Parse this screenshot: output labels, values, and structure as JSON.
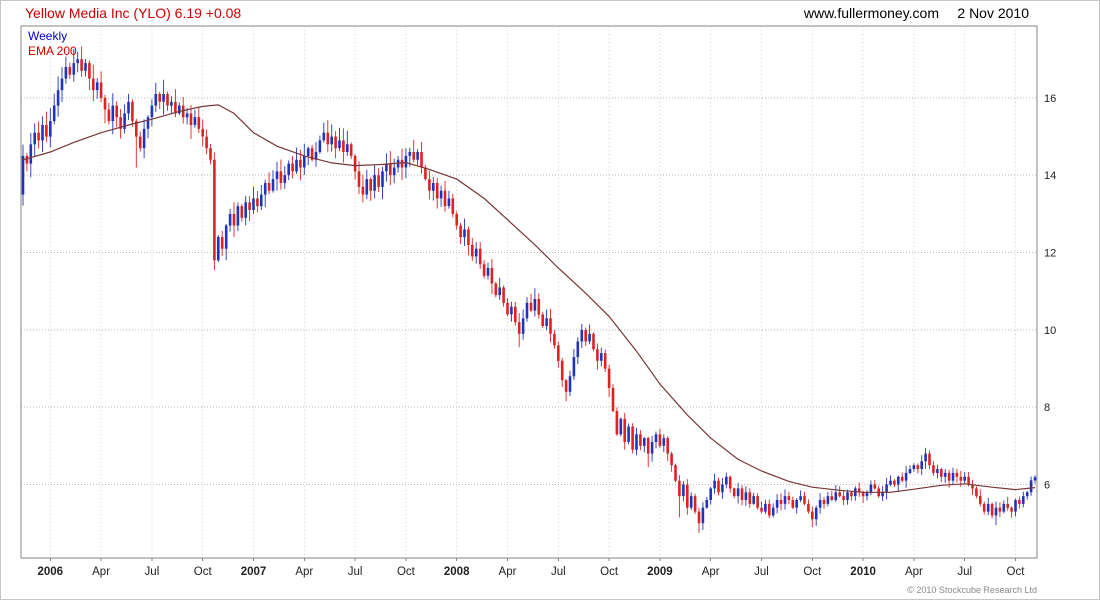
{
  "header": {
    "title": "Yellow Media Inc (YLO) 6.19 +0.08",
    "instrument": "Yellow Media Inc",
    "ticker": "YLO",
    "last_price": "6.19",
    "change": "+0.08",
    "website": "www.fullermoney.com",
    "date": "2 Nov 2010"
  },
  "legend": {
    "timeframe": "Weekly",
    "indicator": "EMA 200"
  },
  "footer": {
    "copyright": "© 2010 Stockcube Research Ltd"
  },
  "colors": {
    "up": "#2233bb",
    "down": "#dd2222",
    "ema": "#7a3535",
    "grid_h": "#b9b9b9",
    "grid_v": "#d2d2d2",
    "border": "#858585",
    "axis_text": "#222222",
    "title_red": "#cc0000",
    "weekly_blue": "#0000cc"
  },
  "chart_data": {
    "type": "candlestick",
    "title": "Yellow Media Inc (YLO) 6.19 +0.08",
    "series_name": "Yellow Media Inc (YLO) weekly price",
    "timeframe": "Weekly",
    "indicator": "EMA 200",
    "legend_position": "top-left",
    "grid": true,
    "weeks": 260,
    "first_open": 13.5,
    "y_axis": {
      "min": 4.1,
      "max": 17.86,
      "ticks": [
        6,
        8,
        10,
        12,
        14,
        16
      ]
    },
    "x_ticks": [
      {
        "label": "2006",
        "week": 7,
        "year": true
      },
      {
        "label": "Apr",
        "week": 20
      },
      {
        "label": "Jul",
        "week": 33
      },
      {
        "label": "Oct",
        "week": 46
      },
      {
        "label": "2007",
        "week": 59,
        "year": true
      },
      {
        "label": "Apr",
        "week": 72
      },
      {
        "label": "Jul",
        "week": 85
      },
      {
        "label": "Oct",
        "week": 98
      },
      {
        "label": "2008",
        "week": 111,
        "year": true
      },
      {
        "label": "Apr",
        "week": 124
      },
      {
        "label": "Jul",
        "week": 137
      },
      {
        "label": "Oct",
        "week": 150
      },
      {
        "label": "2009",
        "week": 163,
        "year": true
      },
      {
        "label": "Apr",
        "week": 176
      },
      {
        "label": "Jul",
        "week": 189
      },
      {
        "label": "Oct",
        "week": 202
      },
      {
        "label": "2010",
        "week": 215,
        "year": true
      },
      {
        "label": "Apr",
        "week": 228
      },
      {
        "label": "Jul",
        "week": 241
      },
      {
        "label": "Oct",
        "week": 254
      }
    ],
    "closes": [
      14.5,
      14.3,
      14.8,
      15.1,
      14.9,
      15.3,
      15.0,
      15.4,
      15.8,
      16.2,
      16.5,
      16.8,
      16.6,
      16.9,
      17.0,
      16.7,
      16.9,
      16.5,
      16.2,
      16.4,
      16.0,
      15.7,
      15.4,
      15.8,
      15.5,
      15.2,
      15.6,
      15.9,
      15.4,
      15.0,
      14.7,
      15.2,
      15.5,
      15.8,
      16.1,
      15.9,
      16.1,
      15.8,
      15.9,
      15.6,
      15.8,
      15.5,
      15.6,
      15.3,
      15.5,
      15.2,
      15.0,
      14.7,
      14.4,
      11.8,
      12.4,
      12.1,
      12.7,
      13.0,
      12.7,
      13.2,
      12.9,
      13.3,
      13.1,
      13.4,
      13.2,
      13.5,
      13.8,
      13.6,
      13.9,
      14.1,
      13.8,
      14.0,
      14.3,
      14.1,
      14.4,
      14.2,
      14.5,
      14.7,
      14.4,
      14.6,
      14.9,
      15.1,
      14.8,
      15.0,
      14.7,
      14.9,
      14.6,
      14.8,
      14.5,
      14.1,
      13.7,
      13.5,
      13.9,
      13.6,
      14.0,
      13.7,
      14.1,
      14.3,
      14.0,
      14.2,
      14.4,
      14.2,
      14.5,
      14.6,
      14.4,
      14.6,
      14.2,
      13.9,
      13.6,
      13.8,
      13.4,
      13.6,
      13.2,
      13.4,
      13.0,
      12.7,
      12.4,
      12.6,
      12.2,
      11.9,
      12.1,
      11.7,
      11.4,
      11.6,
      11.2,
      10.9,
      11.1,
      10.7,
      10.4,
      10.6,
      10.2,
      9.9,
      10.3,
      10.7,
      10.5,
      10.8,
      10.4,
      10.1,
      10.3,
      9.9,
      9.6,
      9.2,
      8.7,
      8.4,
      8.8,
      9.3,
      9.7,
      10.0,
      9.7,
      9.9,
      9.5,
      9.2,
      9.4,
      9.0,
      8.5,
      7.9,
      7.3,
      7.7,
      7.1,
      7.5,
      6.9,
      7.3,
      7.0,
      7.2,
      6.8,
      7.1,
      7.3,
      7.0,
      7.2,
      6.8,
      6.5,
      6.1,
      5.7,
      6.0,
      5.4,
      5.7,
      5.3,
      5.0,
      5.4,
      5.6,
      5.9,
      6.1,
      5.8,
      6.0,
      6.2,
      5.9,
      5.7,
      5.9,
      5.6,
      5.8,
      5.5,
      5.7,
      5.4,
      5.3,
      5.5,
      5.2,
      5.4,
      5.6,
      5.5,
      5.7,
      5.6,
      5.4,
      5.6,
      5.7,
      5.5,
      5.3,
      5.1,
      5.4,
      5.6,
      5.5,
      5.7,
      5.6,
      5.8,
      5.7,
      5.6,
      5.8,
      5.7,
      5.9,
      5.8,
      5.7,
      5.8,
      6.0,
      5.9,
      5.7,
      5.8,
      6.0,
      6.1,
      6.0,
      6.2,
      6.1,
      6.3,
      6.4,
      6.5,
      6.4,
      6.6,
      6.8,
      6.5,
      6.3,
      6.4,
      6.2,
      6.3,
      6.1,
      6.3,
      6.2,
      6.1,
      6.2,
      6.0,
      5.9,
      5.7,
      5.5,
      5.3,
      5.5,
      5.2,
      5.4,
      5.3,
      5.5,
      5.4,
      5.3,
      5.6,
      5.5,
      5.7,
      5.8,
      6.11,
      6.19
    ],
    "spikes": [
      {
        "i": 14,
        "high": 17.2
      },
      {
        "i": 29,
        "low": 14.2
      },
      {
        "i": 49,
        "low": 11.55
      },
      {
        "i": 87,
        "low": 13.3
      },
      {
        "i": 127,
        "low": 9.55
      },
      {
        "i": 139,
        "low": 8.15
      },
      {
        "i": 160,
        "low": 6.45
      },
      {
        "i": 168,
        "low": 5.15
      },
      {
        "i": 173,
        "low": 4.75
      },
      {
        "i": 202,
        "low": 4.9
      },
      {
        "i": 231,
        "high": 6.95
      },
      {
        "i": 249,
        "low": 4.95
      }
    ],
    "ema": {
      "label": "EMA 200",
      "period": 200,
      "anchors": [
        [
          0,
          14.4
        ],
        [
          7,
          14.6
        ],
        [
          13,
          14.85
        ],
        [
          20,
          15.1
        ],
        [
          27,
          15.3
        ],
        [
          33,
          15.45
        ],
        [
          40,
          15.65
        ],
        [
          46,
          15.78
        ],
        [
          50,
          15.82
        ],
        [
          54,
          15.6
        ],
        [
          59,
          15.1
        ],
        [
          65,
          14.75
        ],
        [
          72,
          14.5
        ],
        [
          79,
          14.32
        ],
        [
          85,
          14.25
        ],
        [
          92,
          14.28
        ],
        [
          98,
          14.33
        ],
        [
          104,
          14.15
        ],
        [
          111,
          13.9
        ],
        [
          118,
          13.4
        ],
        [
          124,
          12.85
        ],
        [
          131,
          12.2
        ],
        [
          137,
          11.6
        ],
        [
          144,
          10.95
        ],
        [
          150,
          10.35
        ],
        [
          157,
          9.45
        ],
        [
          163,
          8.6
        ],
        [
          170,
          7.8
        ],
        [
          176,
          7.2
        ],
        [
          183,
          6.65
        ],
        [
          189,
          6.35
        ],
        [
          196,
          6.08
        ],
        [
          202,
          5.93
        ],
        [
          209,
          5.85
        ],
        [
          215,
          5.8
        ],
        [
          222,
          5.8
        ],
        [
          228,
          5.88
        ],
        [
          235,
          5.98
        ],
        [
          241,
          6.02
        ],
        [
          248,
          5.93
        ],
        [
          254,
          5.87
        ],
        [
          259,
          5.92
        ]
      ]
    }
  }
}
